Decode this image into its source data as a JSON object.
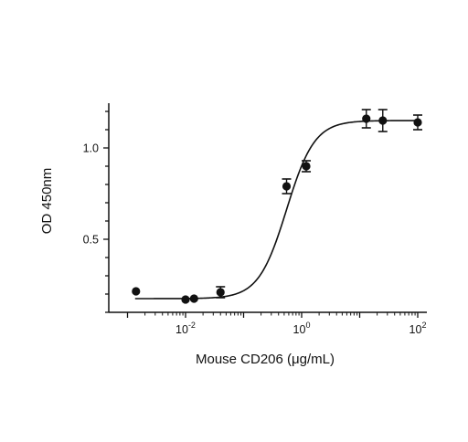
{
  "chart_data": {
    "type": "scatter",
    "xscale": "log",
    "xlabel": "Mouse CD206 (μg/mL)",
    "ylabel": "OD 450nm",
    "xlim": [
      0.001,
      100
    ],
    "ylim": [
      0.1,
      1.25
    ],
    "grid": false,
    "x_ticks": [
      {
        "value": 0.01,
        "base": "10",
        "exp": "-2"
      },
      {
        "value": 1,
        "base": "10",
        "exp": "0"
      },
      {
        "value": 100,
        "base": "10",
        "exp": "2"
      }
    ],
    "y_ticks": [
      {
        "value": 0.5,
        "label": "0.5"
      },
      {
        "value": 1.0,
        "label": "1.0"
      }
    ],
    "series": [
      {
        "points": [
          {
            "x": 0.0014,
            "y": 0.215,
            "err": 0.0
          },
          {
            "x": 0.01,
            "y": 0.17,
            "err": 0.0
          },
          {
            "x": 0.014,
            "y": 0.175,
            "err": 0.0
          },
          {
            "x": 0.04,
            "y": 0.21,
            "err": 0.03
          },
          {
            "x": 0.55,
            "y": 0.79,
            "err": 0.04
          },
          {
            "x": 1.2,
            "y": 0.9,
            "err": 0.03
          },
          {
            "x": 13,
            "y": 1.16,
            "err": 0.05
          },
          {
            "x": 25,
            "y": 1.15,
            "err": 0.06
          },
          {
            "x": 100,
            "y": 1.14,
            "err": 0.04
          }
        ],
        "fit": {
          "bottom": 0.175,
          "top": 1.15,
          "ec50": 0.55,
          "hill": 1.8
        }
      }
    ]
  }
}
